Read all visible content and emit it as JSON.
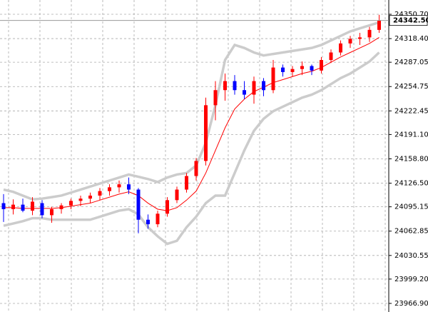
{
  "chart_data": {
    "type": "candlestick",
    "open": [
      24100,
      24092,
      24098,
      24090,
      24100,
      24084,
      24092,
      24097,
      24103,
      24106,
      24110,
      24116,
      24121,
      24125,
      24118,
      24078,
      24072,
      24086,
      24104,
      24118,
      24136,
      24156,
      24230,
      24250,
      24262,
      24250,
      24244,
      24262,
      24250,
      24280,
      24274,
      24278,
      24282,
      24276,
      24290,
      24300,
      24312,
      24318,
      24320,
      24330
    ],
    "high": [
      24112,
      24105,
      24106,
      24108,
      24104,
      24095,
      24100,
      24106,
      24110,
      24114,
      24120,
      24125,
      24130,
      24134,
      24120,
      24085,
      24090,
      24108,
      24122,
      24140,
      24160,
      24240,
      24262,
      24272,
      24270,
      24262,
      24268,
      24266,
      24290,
      24284,
      24282,
      24288,
      24284,
      24294,
      24304,
      24316,
      24322,
      24326,
      24334,
      24350
    ],
    "low": [
      24075,
      24085,
      24088,
      24084,
      24080,
      24074,
      24086,
      24092,
      24096,
      24100,
      24104,
      24110,
      24114,
      24112,
      24060,
      24066,
      24068,
      24082,
      24100,
      24114,
      24130,
      24150,
      24210,
      24236,
      24244,
      24238,
      24232,
      24242,
      24246,
      24268,
      24268,
      24270,
      24270,
      24272,
      24286,
      24296,
      24306,
      24310,
      24314,
      24326
    ],
    "close": [
      24092,
      24098,
      24090,
      24102,
      24084,
      24092,
      24097,
      24103,
      24106,
      24110,
      24116,
      24121,
      24125,
      24118,
      24078,
      24072,
      24086,
      24104,
      24118,
      24136,
      24156,
      24230,
      24250,
      24262,
      24250,
      24244,
      24262,
      24250,
      24280,
      24274,
      24278,
      24282,
      24276,
      24290,
      24300,
      24312,
      24318,
      24320,
      24330,
      24342.5
    ],
    "up_color": "#ff0000",
    "down_color": "#0000ff",
    "bands": {
      "color": "#cccccc",
      "middle_color": "#ff0000",
      "upper": [
        24118,
        24115,
        24110,
        24105,
        24106,
        24108,
        24110,
        24114,
        24118,
        24122,
        24126,
        24130,
        24134,
        24138,
        24135,
        24132,
        24128,
        24134,
        24138,
        24140,
        24150,
        24180,
        24230,
        24290,
        24310,
        24306,
        24300,
        24296,
        24298,
        24300,
        24302,
        24304,
        24306,
        24310,
        24316,
        24322,
        24328,
        24332,
        24336,
        24340
      ],
      "middle": [
        24094,
        24094,
        24093,
        24093,
        24093,
        24093,
        24094,
        24096,
        24098,
        24100,
        24104,
        24108,
        24112,
        24115,
        24110,
        24100,
        24092,
        24090,
        24094,
        24104,
        24116,
        24140,
        24170,
        24200,
        24225,
        24238,
        24248,
        24254,
        24260,
        24264,
        24268,
        24272,
        24275,
        24280,
        24287,
        24294,
        24300,
        24306,
        24312,
        24320
      ],
      "lower": [
        24070,
        24073,
        24076,
        24080,
        24080,
        24078,
        24078,
        24078,
        24078,
        24078,
        24082,
        24086,
        24090,
        24092,
        24085,
        24068,
        24056,
        24046,
        24050,
        24068,
        24082,
        24100,
        24110,
        24110,
        24140,
        24170,
        24196,
        24212,
        24222,
        24228,
        24234,
        24240,
        24244,
        24250,
        24258,
        24266,
        24272,
        24280,
        24288,
        24300
      ]
    },
    "ylim": [
      23955.5,
      24369.65
    ],
    "yticks": [
      {
        "value": 24350.7,
        "label": "24350.70"
      },
      {
        "value": 24318.4,
        "label": "24318.40"
      },
      {
        "value": 24287.05,
        "label": "24287.05"
      },
      {
        "value": 24254.75,
        "label": "24254.75"
      },
      {
        "value": 24222.45,
        "label": "24222.45"
      },
      {
        "value": 24191.1,
        "label": "24191.10"
      },
      {
        "value": 24158.8,
        "label": "24158.80"
      },
      {
        "value": 24126.5,
        "label": "24126.50"
      },
      {
        "value": 24095.15,
        "label": "24095.15"
      },
      {
        "value": 24062.85,
        "label": "24062.85"
      },
      {
        "value": 24030.55,
        "label": "24030.55"
      },
      {
        "value": 23999.2,
        "label": "23999.20"
      },
      {
        "value": 23966.9,
        "label": "23966.90"
      }
    ],
    "current_price": {
      "value": 24342.5,
      "label": "24342.50"
    },
    "grid": true
  }
}
